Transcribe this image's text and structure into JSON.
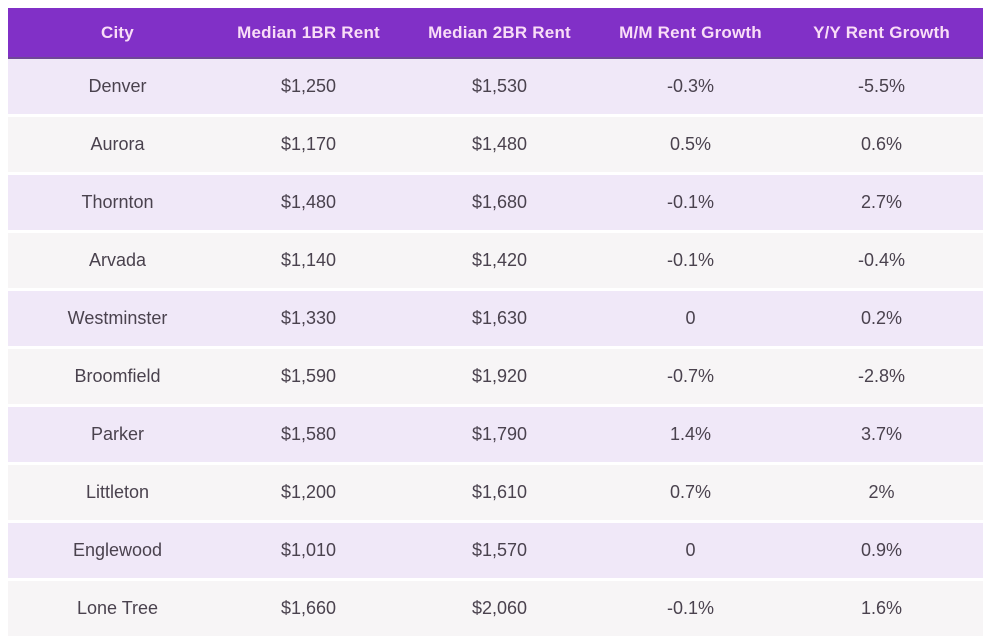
{
  "chart_data": {
    "type": "table",
    "columns": [
      "City",
      "Median 1BR Rent",
      "Median 2BR Rent",
      "M/M Rent Growth",
      "Y/Y Rent Growth"
    ],
    "rows": [
      [
        "Denver",
        "$1,250",
        "$1,530",
        "-0.3%",
        "-5.5%"
      ],
      [
        "Aurora",
        "$1,170",
        "$1,480",
        "0.5%",
        "0.6%"
      ],
      [
        "Thornton",
        "$1,480",
        "$1,680",
        "-0.1%",
        "2.7%"
      ],
      [
        "Arvada",
        "$1,140",
        "$1,420",
        "-0.1%",
        "-0.4%"
      ],
      [
        "Westminster",
        "$1,330",
        "$1,630",
        "0",
        "0.2%"
      ],
      [
        "Broomfield",
        "$1,590",
        "$1,920",
        "-0.7%",
        "-2.8%"
      ],
      [
        "Parker",
        "$1,580",
        "$1,790",
        "1.4%",
        "3.7%"
      ],
      [
        "Littleton",
        "$1,200",
        "$1,610",
        "0.7%",
        "2%"
      ],
      [
        "Englewood",
        "$1,010",
        "$1,570",
        "0",
        "0.9%"
      ],
      [
        "Lone Tree",
        "$1,660",
        "$2,060",
        "-0.1%",
        "1.6%"
      ]
    ],
    "layout": {
      "header_position": "top",
      "alignment": "center",
      "striped_rows": true,
      "grid": "horizontal-white-gaps"
    }
  },
  "colors": {
    "header_bg": "#8130c7",
    "header_text": "#f9ddf7",
    "header_border": "#6f4796",
    "row_alt1_bg": "#f0e8f8",
    "row_alt2_bg": "#f7f5f6",
    "cell_text": "#4a424e",
    "page_bg": "#ffffff"
  }
}
